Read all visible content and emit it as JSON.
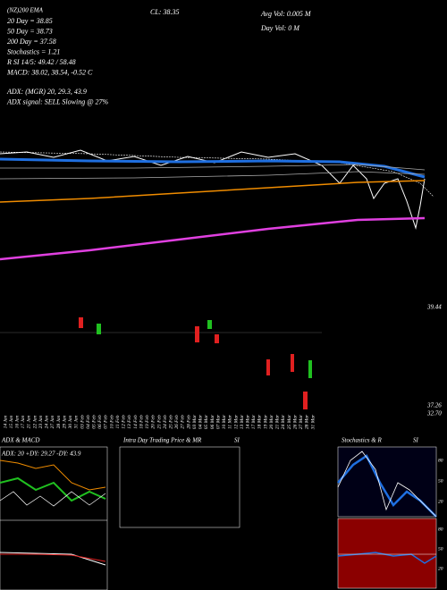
{
  "header": {
    "ticker": "(NZ)200 EMA",
    "lines": [
      "20 Day = 38.85",
      "50 Day = 38.73",
      "200 Day = 37.58",
      "Stochastics = 1.21",
      "R SI 14/5: 49.42 / 58.48",
      "MACD: 38.02, 38.54, -0.52 C",
      "ADX: (MGR) 20, 29.3, 43.9",
      "ADX signal: SELL Slowing @ 27%"
    ],
    "close": "CL: 38.35",
    "avg_vol": "Avg Vol: 0.005 M",
    "day_vol": "Day Vol: 0 M"
  },
  "price_axis": [
    "39.44"
  ],
  "volume_axis": [
    "37.26",
    "32.70"
  ],
  "dates": [
    "14 Jan",
    "15 Jan",
    "16 Jan",
    "17 Jan",
    "21 Jan",
    "22 Jan",
    "23 Jan",
    "24 Jan",
    "27 Jan",
    "28 Jan",
    "29 Jan",
    "30 Jan",
    "31 Jan",
    "03 Feb",
    "04 Feb",
    "05 Feb",
    "06 Feb",
    "07 Feb",
    "10 Feb",
    "11 Feb",
    "12 Feb",
    "13 Feb",
    "14 Feb",
    "18 Feb",
    "19 Feb",
    "20 Feb",
    "21 Feb",
    "24 Feb",
    "25 Feb",
    "26 Feb",
    "27 Feb",
    "28 Feb",
    "03 Mar",
    "04 Mar",
    "05 Mar",
    "06 Mar",
    "07 Mar",
    "10 Mar",
    "11 Mar",
    "12 Mar",
    "13 Mar",
    "14 Mar",
    "17 Mar",
    "18 Mar",
    "19 Mar",
    "20 Mar",
    "21 Mar",
    "24 Mar",
    "25 Mar",
    "26 Mar",
    "27 Mar",
    "28 Mar",
    "31 Mar"
  ],
  "panels": {
    "adx_title": "ADX & MACD",
    "adx_values": "ADX: 20 +DY: 29.27 -DY: 43.9",
    "intraday_title": "Intra Day Trading Price & MR",
    "intraday_si": "SI",
    "stoch_title": "Stochastics & R",
    "stoch_si": "SI",
    "stoch_axis": [
      "80",
      "50",
      "20"
    ],
    "rsi_axis": [
      "80",
      "50",
      "20"
    ]
  }
}
